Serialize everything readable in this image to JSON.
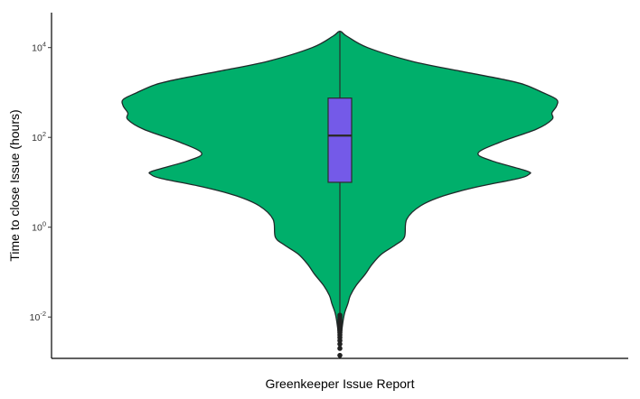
{
  "chart_data": {
    "type": "violin",
    "category": "Greenkeeper Issue Report",
    "xlabel": "Greenkeeper Issue Report",
    "ylabel": "Time to close Issue (hours)",
    "y_scale": "log10",
    "ylim": [
      0.0012,
      60000
    ],
    "y_ticks": [
      {
        "base": "10",
        "exp": "-2",
        "value": 0.01
      },
      {
        "base": "10",
        "exp": "0",
        "value": 1
      },
      {
        "base": "10",
        "exp": "2",
        "value": 100
      },
      {
        "base": "10",
        "exp": "4",
        "value": 10000
      }
    ],
    "violin_profile": [
      {
        "y": 23000,
        "width": 0.0
      },
      {
        "y": 18000,
        "width": 0.03
      },
      {
        "y": 10000,
        "width": 0.12
      },
      {
        "y": 5000,
        "width": 0.31
      },
      {
        "y": 3000,
        "width": 0.52
      },
      {
        "y": 2000,
        "width": 0.7
      },
      {
        "y": 1500,
        "width": 0.8
      },
      {
        "y": 1000,
        "width": 0.88
      },
      {
        "y": 700,
        "width": 0.94
      },
      {
        "y": 500,
        "width": 0.94
      },
      {
        "y": 350,
        "width": 0.92
      },
      {
        "y": 250,
        "width": 0.92
      },
      {
        "y": 150,
        "width": 0.85
      },
      {
        "y": 80,
        "width": 0.7
      },
      {
        "y": 45,
        "width": 0.6
      },
      {
        "y": 30,
        "width": 0.66
      },
      {
        "y": 18,
        "width": 0.81
      },
      {
        "y": 15,
        "width": 0.82
      },
      {
        "y": 12,
        "width": 0.77
      },
      {
        "y": 8,
        "width": 0.6
      },
      {
        "y": 5,
        "width": 0.45
      },
      {
        "y": 3,
        "width": 0.35
      },
      {
        "y": 1.5,
        "width": 0.29
      },
      {
        "y": 0.6,
        "width": 0.28
      },
      {
        "y": 0.4,
        "width": 0.24
      },
      {
        "y": 0.25,
        "width": 0.18
      },
      {
        "y": 0.15,
        "width": 0.14
      },
      {
        "y": 0.09,
        "width": 0.11
      },
      {
        "y": 0.05,
        "width": 0.07
      },
      {
        "y": 0.03,
        "width": 0.045
      },
      {
        "y": 0.02,
        "width": 0.035
      },
      {
        "y": 0.012,
        "width": 0.02
      },
      {
        "y": 0.006,
        "width": 0.01
      },
      {
        "y": 0.002,
        "width": 0.0
      }
    ],
    "boxplot": {
      "q1": 10,
      "median": 110,
      "q3": 750,
      "whisker_low": 0.012,
      "whisker_high": 22000
    },
    "outliers": [
      0.011,
      0.01,
      0.009,
      0.0085,
      0.008,
      0.0075,
      0.007,
      0.0065,
      0.006,
      0.0055,
      0.005,
      0.0045,
      0.004,
      0.0035,
      0.003,
      0.0025,
      0.002,
      0.0014
    ],
    "colors": {
      "violin_fill": "#00AF6B",
      "violin_stroke": "#1f2a2a",
      "box_fill": "#745AE8",
      "box_stroke": "#2b2b2b",
      "outlier": "#222222"
    },
    "grid": false,
    "legend": "none"
  }
}
